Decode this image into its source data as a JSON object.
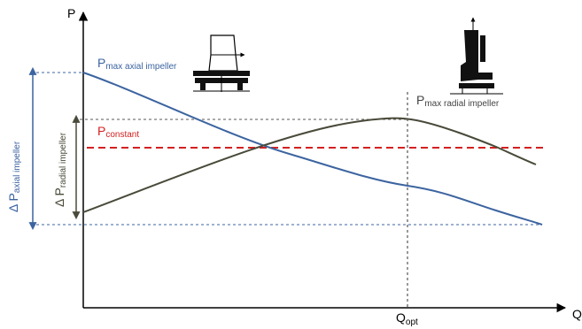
{
  "axes": {
    "y_label": "P",
    "x_label": "Q",
    "x_marker_main": "Q",
    "x_marker_sub": "opt"
  },
  "labels": {
    "p_max_axial_main": "P",
    "p_max_axial_sub": "max axial impeller",
    "p_max_radial_main": "P",
    "p_max_radial_sub": "max radial impeller",
    "p_constant_main": "P",
    "p_constant_sub": "constant",
    "delta_axial_main": "Δ P",
    "delta_axial_sub": "axial impeller",
    "delta_radial_main": "Δ P",
    "delta_radial_sub": "radial impeller"
  },
  "icons": {
    "axial": "axial-impeller-icon",
    "radial": "radial-impeller-icon"
  },
  "colors": {
    "axial_curve": "#3c64a0",
    "radial_curve": "#4a4a3a",
    "constant_line": "#d42020",
    "axis": "#000000",
    "guide": "#3c64a0",
    "guide_dark": "#555555"
  }
}
